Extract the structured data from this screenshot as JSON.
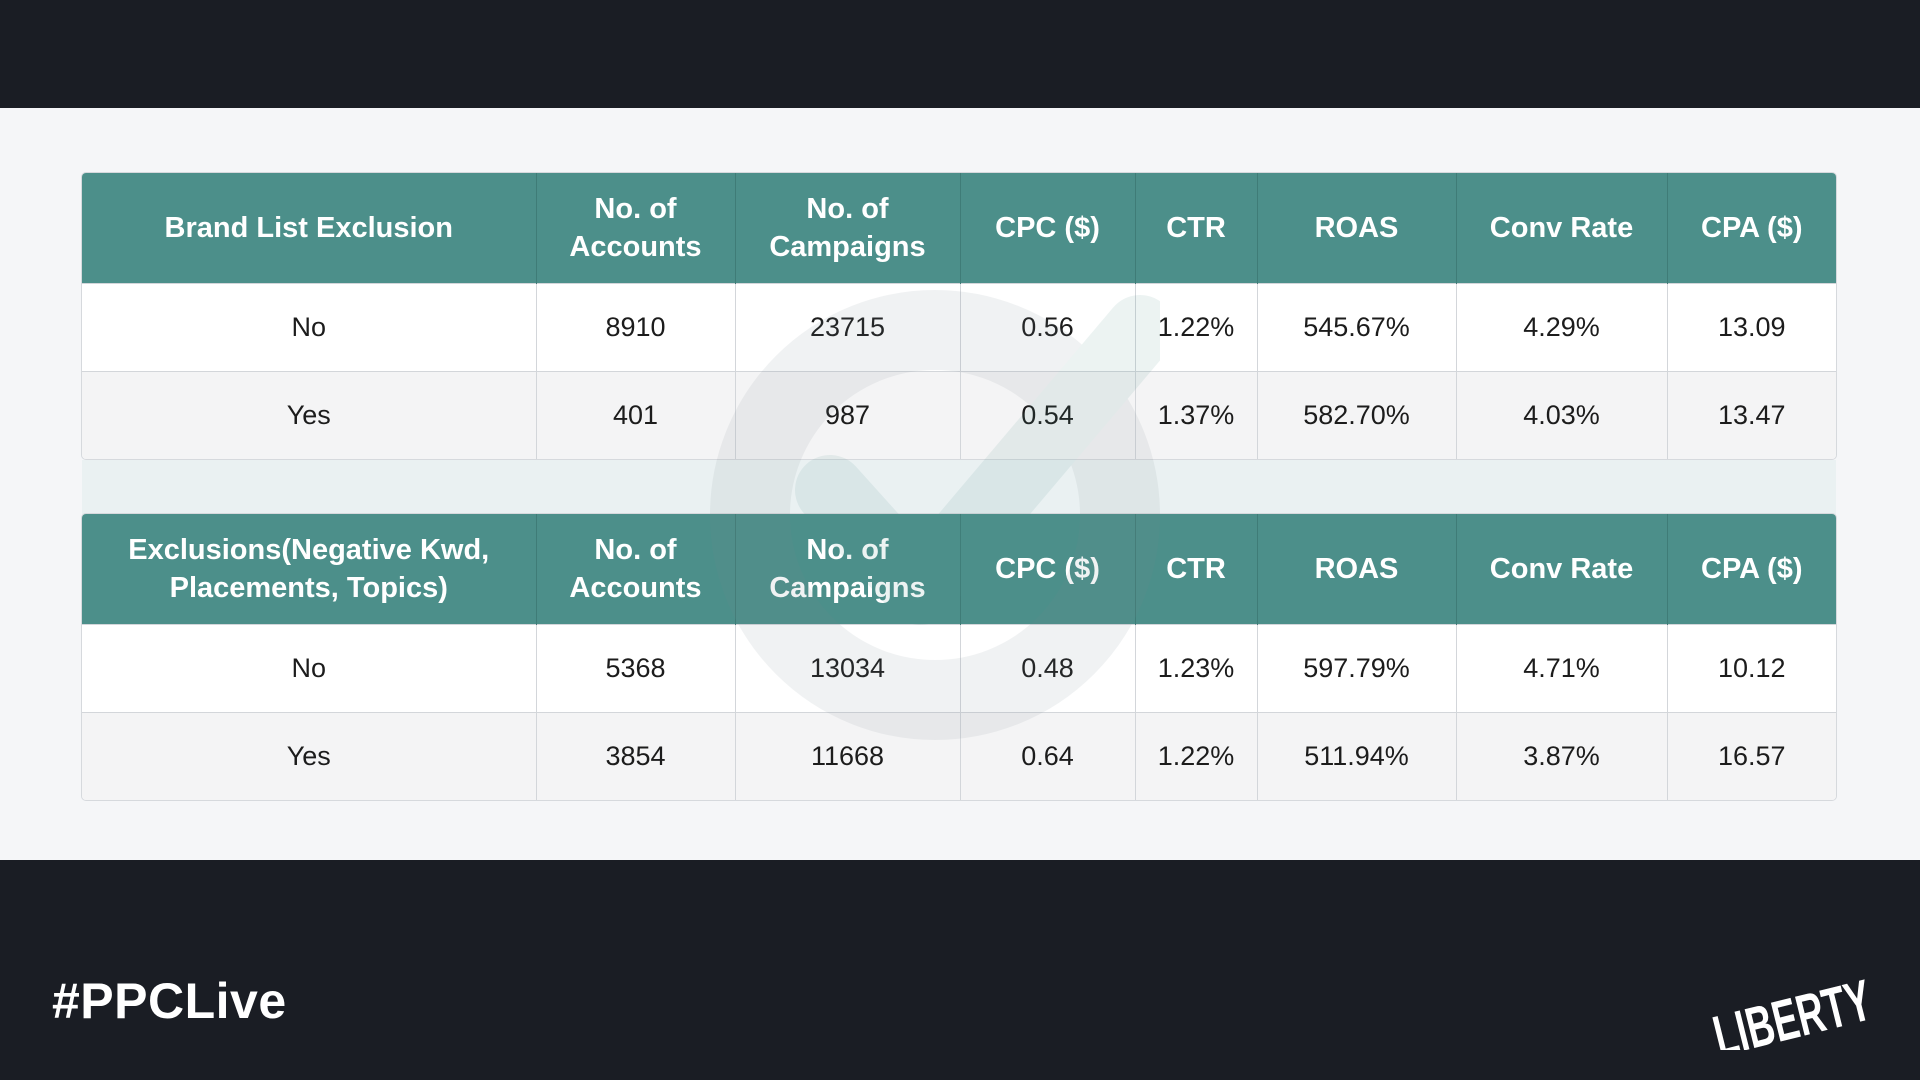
{
  "table1": {
    "headers": [
      "Brand List Exclusion",
      "No. of Accounts",
      "No. of Campaigns",
      "CPC ($)",
      "CTR",
      "ROAS",
      "Conv Rate",
      "CPA ($)"
    ],
    "rows": [
      [
        "No",
        "8910",
        "23715",
        "0.56",
        "1.22%",
        "545.67%",
        "4.29%",
        "13.09"
      ],
      [
        "Yes",
        "401",
        "987",
        "0.54",
        "1.37%",
        "582.70%",
        "4.03%",
        "13.47"
      ]
    ]
  },
  "table2": {
    "headers": [
      "Exclusions(Negative Kwd, Placements, Topics)",
      "No. of Accounts",
      "No. of Campaigns",
      "CPC ($)",
      "CTR",
      "ROAS",
      "Conv Rate",
      "CPA ($)"
    ],
    "rows": [
      [
        "No",
        "5368",
        "13034",
        "0.48",
        "1.23%",
        "597.79%",
        "4.71%",
        "10.12"
      ],
      [
        "Yes",
        "3854",
        "11668",
        "0.64",
        "1.22%",
        "511.94%",
        "3.87%",
        "16.57"
      ]
    ]
  },
  "footer": {
    "hashtag": "#PPCLive",
    "logo_text": "LIBERTY"
  },
  "colors": {
    "header_bg": "#4c8f8a",
    "frame_bg": "#1a1d24",
    "content_bg": "#f5f6f8"
  },
  "icons": {
    "watermark": "checkmark-circle-watermark-icon",
    "logo": "liberty-logo"
  }
}
